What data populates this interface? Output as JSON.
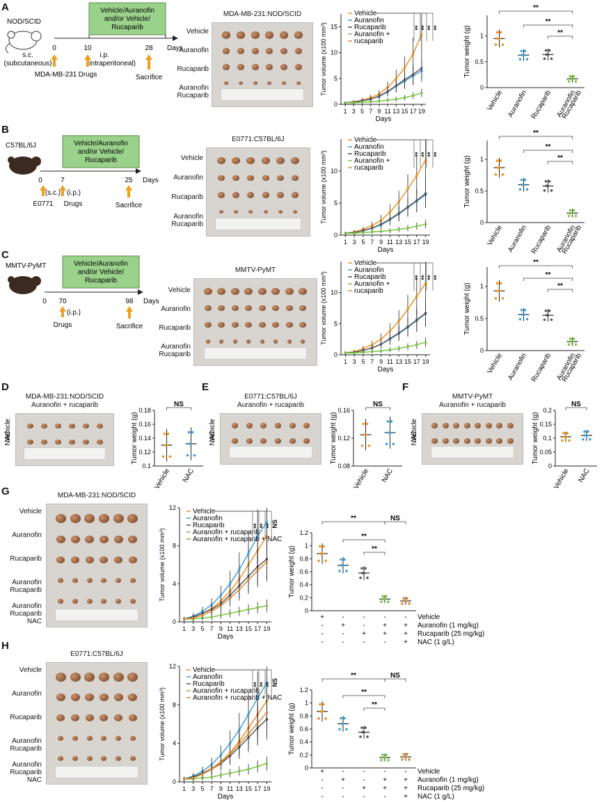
{
  "panels": {
    "A": {
      "letter": "A",
      "mouse": "NOD/SCID",
      "treatment": [
        "Vehicle/Auranofin",
        "and/or Vehicle/",
        "Rucaparib"
      ],
      "day0": "0",
      "day1": "10",
      "day2": "28",
      "days": "Days",
      "sc1": "s.c.",
      "sc2": "(subcutaneous)",
      "cell": "MDA-MB-231",
      "drugs": "Drugs",
      "ip1": "i.p.",
      "ip2": "(intraperitoneal)",
      "sac": "Sacrifice",
      "photo_title": "MDA-MB-231:NOD/SCID"
    },
    "B": {
      "letter": "B",
      "mouse": "C57BL/6J",
      "treatment": [
        "Vehicle/Auranofin",
        "and/or Vehicle/",
        "Rucaparib"
      ],
      "day0": "0",
      "day1": "7",
      "day2": "25",
      "days": "Days",
      "sc": "(s.c.)",
      "ip": "(i.p.)",
      "cell": "E0771",
      "drugs": "Drugs",
      "sac": "Sacrifice",
      "photo_title": "E0771:C57BL/6J"
    },
    "C": {
      "letter": "C",
      "mouse": "MMTV-PyMT",
      "treatment": [
        "Vehicle/Auranofin",
        "and/or Vehicle/",
        "Rucaparib"
      ],
      "day0": "0",
      "day1": "70",
      "day2": "98",
      "days": "Days",
      "ip": "(i.p.)",
      "drugs": "Drugs",
      "sac": "Sacrifice",
      "photo_title": "MMTV-PyMT"
    },
    "D": {
      "letter": "D",
      "photo_title1": "MDA-MB-231:NOD/SCID",
      "photo_title2": "Auranofin + rucaparib"
    },
    "E": {
      "letter": "E",
      "photo_title1": "E0771:C57BL/6J",
      "photo_title2": "Auranofin + rucaparib"
    },
    "F": {
      "letter": "F",
      "photo_title1": "MMTV-PyMT",
      "photo_title2": "Auranofin + rucaparib"
    },
    "G": {
      "letter": "G",
      "photo_title": "MDA-MB-231:NOD/SCID"
    },
    "H": {
      "letter": "H",
      "photo_title": "E0771:C57BL/6J"
    }
  },
  "row_labels_4": [
    "Vehicle",
    "Auranofin",
    "Rucaparib",
    "Auranofin\nRucaparib"
  ],
  "row_labels_5": [
    "Vehicle",
    "Auranofin",
    "Rucaparib",
    "Auranofin\nRucaparib",
    "Auranofin\nRucaparib\nNAC"
  ],
  "side_labels": {
    "nac": "NAC",
    "vehicle": "Vehicle"
  },
  "legend4": [
    "Vehicle",
    "Auranofin",
    "Rucaparib",
    "Auranofin +",
    "rucaparib"
  ],
  "legend5": [
    "Vehicle",
    "Auranofin",
    "Rucaparib",
    "Auranofin + rucaparib",
    "Auranofin + rucaparib + NAC"
  ],
  "sig": {
    "star": "**",
    "ns": "NS"
  },
  "axes": {
    "tumor_volume": "Tumor volume (x100 mm³)",
    "days": "Days",
    "tumor_weight": "Tumor weight (g)"
  },
  "weight_cats4": [
    "Vehicle",
    "Auranofin",
    "Rucaparib",
    "Auranofin\nRucaparib"
  ],
  "weight_cats2": [
    "Vehicle",
    "NAC"
  ],
  "treatment_table": {
    "rows": [
      "Vehicle",
      "Auranofin (1 mg/kg)",
      "Rucaparib (25 mg/kg)",
      "NAC (1 g/L)"
    ],
    "signs": [
      [
        "+",
        "-",
        "-",
        "-",
        "-"
      ],
      [
        "-",
        "+",
        "-",
        "+",
        "+"
      ],
      [
        "-",
        "-",
        "+",
        "+",
        "+"
      ],
      [
        "-",
        "-",
        "-",
        "-",
        "+"
      ]
    ]
  },
  "colors": {
    "vehicle": "#f0901e",
    "auranofin": "#3aa0dc",
    "rucaparib": "#555555",
    "combo": "#7bc043",
    "nac": "#d08a3c",
    "box": "#9ad18b"
  },
  "chart_data": [
    {
      "id": "A-vol",
      "type": "line",
      "x": [
        1,
        3,
        5,
        7,
        9,
        11,
        13,
        15,
        17,
        19
      ],
      "ylim": [
        0,
        17.5
      ],
      "yticks": [
        0,
        5,
        10,
        15
      ],
      "series": [
        {
          "name": "Vehicle",
          "values": [
            0.3,
            0.5,
            0.8,
            1.3,
            2.0,
            3.3,
            5.0,
            7.0,
            9.8,
            13.5
          ]
        },
        {
          "name": "Auranofin",
          "values": [
            0.3,
            0.4,
            0.7,
            1.0,
            1.5,
            2.4,
            3.5,
            4.5,
            5.5,
            6.5
          ]
        },
        {
          "name": "Rucaparib",
          "values": [
            0.3,
            0.4,
            0.7,
            1.0,
            1.6,
            2.5,
            3.6,
            4.8,
            5.8,
            7.0
          ]
        },
        {
          "name": "Auranofin + rucaparib",
          "values": [
            0.3,
            0.3,
            0.4,
            0.5,
            0.6,
            0.8,
            1.0,
            1.3,
            1.7,
            2.2
          ]
        }
      ]
    },
    {
      "id": "A-wt",
      "type": "scatter",
      "ylim": [
        0,
        1.4
      ],
      "yticks": [
        0,
        0.5,
        1.0
      ],
      "means": [
        0.95,
        0.63,
        0.64,
        0.17
      ]
    },
    {
      "id": "B-vol",
      "type": "line",
      "x": [
        1,
        3,
        5,
        7,
        9,
        11,
        13,
        15,
        17,
        19
      ],
      "ylim": [
        0,
        15
      ],
      "yticks": [
        0,
        5,
        10
      ],
      "series": [
        {
          "name": "Vehicle",
          "values": [
            0.3,
            0.5,
            0.9,
            1.5,
            2.3,
            3.6,
            5.2,
            7.2,
            9.3,
            11.7
          ]
        },
        {
          "name": "Auranofin",
          "values": [
            0.3,
            0.4,
            0.7,
            1.1,
            1.6,
            2.4,
            3.3,
            4.3,
            5.3,
            6.3
          ]
        },
        {
          "name": "Rucaparib",
          "values": [
            0.3,
            0.4,
            0.7,
            1.1,
            1.7,
            2.5,
            3.4,
            4.4,
            5.4,
            6.5
          ]
        },
        {
          "name": "Auranofin + rucaparib",
          "values": [
            0.3,
            0.3,
            0.4,
            0.5,
            0.6,
            0.7,
            0.9,
            1.1,
            1.4,
            1.7
          ]
        }
      ]
    },
    {
      "id": "B-wt",
      "type": "scatter",
      "ylim": [
        0,
        1.3
      ],
      "yticks": [
        0,
        0.5,
        1.0
      ],
      "means": [
        0.87,
        0.6,
        0.58,
        0.15
      ]
    },
    {
      "id": "C-vol",
      "type": "line",
      "x": [
        1,
        3,
        5,
        7,
        9,
        11,
        13,
        15,
        17,
        19
      ],
      "ylim": [
        0,
        15
      ],
      "yticks": [
        0,
        5,
        10
      ],
      "series": [
        {
          "name": "Vehicle",
          "values": [
            0.3,
            0.5,
            1.0,
            1.6,
            2.5,
            3.8,
            5.4,
            7.3,
            9.4,
            11.5
          ]
        },
        {
          "name": "Auranofin",
          "values": [
            0.3,
            0.4,
            0.7,
            1.1,
            1.7,
            2.5,
            3.4,
            4.4,
            5.5,
            6.6
          ]
        },
        {
          "name": "Rucaparib",
          "values": [
            0.3,
            0.4,
            0.7,
            1.1,
            1.7,
            2.6,
            3.5,
            4.5,
            5.6,
            6.7
          ]
        },
        {
          "name": "Auranofin + rucaparib",
          "values": [
            0.3,
            0.3,
            0.4,
            0.5,
            0.6,
            0.8,
            1.0,
            1.3,
            1.6,
            2.0
          ]
        }
      ]
    },
    {
      "id": "C-wt",
      "type": "scatter",
      "ylim": [
        0,
        1.3
      ],
      "yticks": [
        0,
        0.5,
        1.0
      ],
      "means": [
        0.93,
        0.56,
        0.55,
        0.14
      ]
    },
    {
      "id": "D-wt",
      "type": "scatter",
      "ylim": [
        0.1,
        0.18
      ],
      "yticks": [
        0.1,
        0.12,
        0.14,
        0.16,
        0.18
      ],
      "means": [
        0.13,
        0.132
      ]
    },
    {
      "id": "E-wt",
      "type": "scatter",
      "ylim": [
        0.08,
        0.16
      ],
      "yticks": [
        0.08,
        0.12,
        0.16
      ],
      "means": [
        0.125,
        0.128
      ]
    },
    {
      "id": "F-wt",
      "type": "scatter",
      "ylim": [
        0,
        0.2
      ],
      "yticks": [
        0,
        0.05,
        0.1,
        0.15,
        0.2
      ],
      "means": [
        0.105,
        0.11
      ]
    },
    {
      "id": "G-vol",
      "type": "line",
      "x": [
        1,
        3,
        5,
        7,
        9,
        11,
        13,
        15,
        17,
        19
      ],
      "ylim": [
        0,
        12
      ],
      "yticks": [
        0,
        4,
        8,
        12
      ],
      "series": [
        {
          "name": "Vehicle",
          "values": [
            0.3,
            0.5,
            0.9,
            1.4,
            2.2,
            3.2,
            4.5,
            6.0,
            7.5,
            9.0
          ]
        },
        {
          "name": "Auranofin",
          "values": [
            0.3,
            0.6,
            1.1,
            1.8,
            2.8,
            4.0,
            5.5,
            7.2,
            9.0,
            10.5
          ]
        },
        {
          "name": "Rucaparib",
          "values": [
            0.3,
            0.5,
            0.9,
            1.3,
            1.9,
            2.8,
            3.8,
            4.8,
            5.8,
            6.6
          ]
        },
        {
          "name": "Auranofin + rucaparib",
          "values": [
            0.3,
            0.3,
            0.4,
            0.5,
            0.7,
            0.9,
            1.1,
            1.3,
            1.5,
            1.7
          ]
        },
        {
          "name": "Auranofin + rucaparib + NAC",
          "values": [
            0.3,
            0.4,
            0.7,
            1.1,
            1.7,
            2.5,
            3.4,
            4.4,
            5.4,
            6.3
          ]
        }
      ]
    },
    {
      "id": "G-wt",
      "type": "scatter",
      "ylim": [
        0,
        1.2
      ],
      "yticks": [
        0,
        0.2,
        0.4,
        0.6,
        0.8,
        1.0,
        1.2
      ],
      "means": [
        0.88,
        0.7,
        0.58,
        0.18,
        0.15
      ]
    },
    {
      "id": "H-vol",
      "type": "line",
      "x": [
        1,
        3,
        5,
        7,
        9,
        11,
        13,
        15,
        17,
        19
      ],
      "ylim": [
        0,
        12
      ],
      "yticks": [
        0,
        4,
        8,
        12
      ],
      "series": [
        {
          "name": "Vehicle",
          "values": [
            0.3,
            0.5,
            0.9,
            1.4,
            2.1,
            3.0,
            4.2,
            5.6,
            7.0,
            8.4
          ]
        },
        {
          "name": "Auranofin",
          "values": [
            0.3,
            0.6,
            1.1,
            1.8,
            2.8,
            4.0,
            5.4,
            7.0,
            8.7,
            10.3
          ]
        },
        {
          "name": "Rucaparib",
          "values": [
            0.3,
            0.5,
            0.9,
            1.3,
            1.9,
            2.7,
            3.6,
            4.6,
            5.6,
            6.5
          ]
        },
        {
          "name": "Auranofin + rucaparib",
          "values": [
            0.3,
            0.3,
            0.4,
            0.5,
            0.7,
            0.9,
            1.1,
            1.3,
            1.6,
            1.9
          ]
        },
        {
          "name": "Auranofin + rucaparib + NAC",
          "values": [
            0.3,
            0.4,
            0.8,
            1.3,
            2.0,
            2.9,
            3.9,
            5.0,
            6.1,
            7.2
          ]
        }
      ]
    },
    {
      "id": "H-wt",
      "type": "scatter",
      "ylim": [
        0,
        1.2
      ],
      "yticks": [
        0,
        0.2,
        0.4,
        0.6,
        0.8,
        1.0,
        1.2
      ],
      "means": [
        0.87,
        0.68,
        0.55,
        0.16,
        0.17
      ]
    }
  ]
}
